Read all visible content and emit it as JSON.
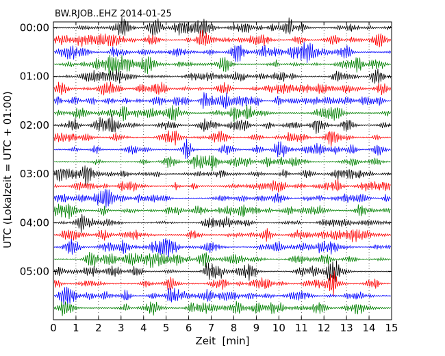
{
  "chart_data": {
    "type": "line",
    "title": "BW.RJOB..EHZ 2014-01-25",
    "xlabel": "Zeit  [min]",
    "ylabel": "UTC (Lokalzeit = UTC + 01:00)",
    "xlim": [
      0,
      15
    ],
    "x_ticks": [
      "0",
      "1",
      "2",
      "3",
      "4",
      "5",
      "6",
      "7",
      "8",
      "9",
      "10",
      "11",
      "12",
      "13",
      "14",
      "15"
    ],
    "y_tick_labels": [
      "00:00",
      "01:00",
      "02:00",
      "03:00",
      "04:00",
      "05:00"
    ],
    "traces_per_hour": 4,
    "minutes_per_trace": 15,
    "trace_count": 24,
    "trace_colors": [
      "#000000",
      "#ff0000",
      "#0000ff",
      "#008000"
    ],
    "vertical_grid": "dotted",
    "legend": "none"
  }
}
